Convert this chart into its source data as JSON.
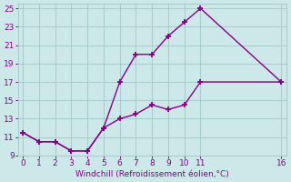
{
  "xlabel": "Windchill (Refroidissement éolien,°C)",
  "line1_x": [
    0,
    1,
    2,
    3,
    4,
    5,
    6,
    7,
    8,
    9,
    10,
    11,
    16
  ],
  "line1_y": [
    11.5,
    10.5,
    10.5,
    9.5,
    9.5,
    12.0,
    17.0,
    20.0,
    20.0,
    22.0,
    23.5,
    25.0,
    17.0
  ],
  "line2_x": [
    0,
    1,
    2,
    3,
    4,
    5,
    6,
    7,
    8,
    9,
    10,
    11,
    16
  ],
  "line2_y": [
    11.5,
    10.5,
    10.5,
    9.5,
    9.5,
    12.0,
    13.0,
    13.5,
    14.5,
    14.0,
    14.5,
    17.0,
    17.0
  ],
  "xlim": [
    -0.3,
    16.3
  ],
  "ylim": [
    9,
    25.5
  ],
  "xticks": [
    0,
    1,
    2,
    3,
    4,
    5,
    6,
    7,
    8,
    9,
    10,
    11,
    16
  ],
  "yticks": [
    9,
    11,
    13,
    15,
    17,
    19,
    21,
    23,
    25
  ],
  "line_color": "#880088",
  "bg_color": "#cce8e8",
  "grid_color": "#aacece",
  "marker": "+",
  "marker_size": 5,
  "markeredgewidth": 1.3,
  "linewidth": 1.0,
  "tick_labelsize": 6.5,
  "xlabel_fontsize": 6.5
}
